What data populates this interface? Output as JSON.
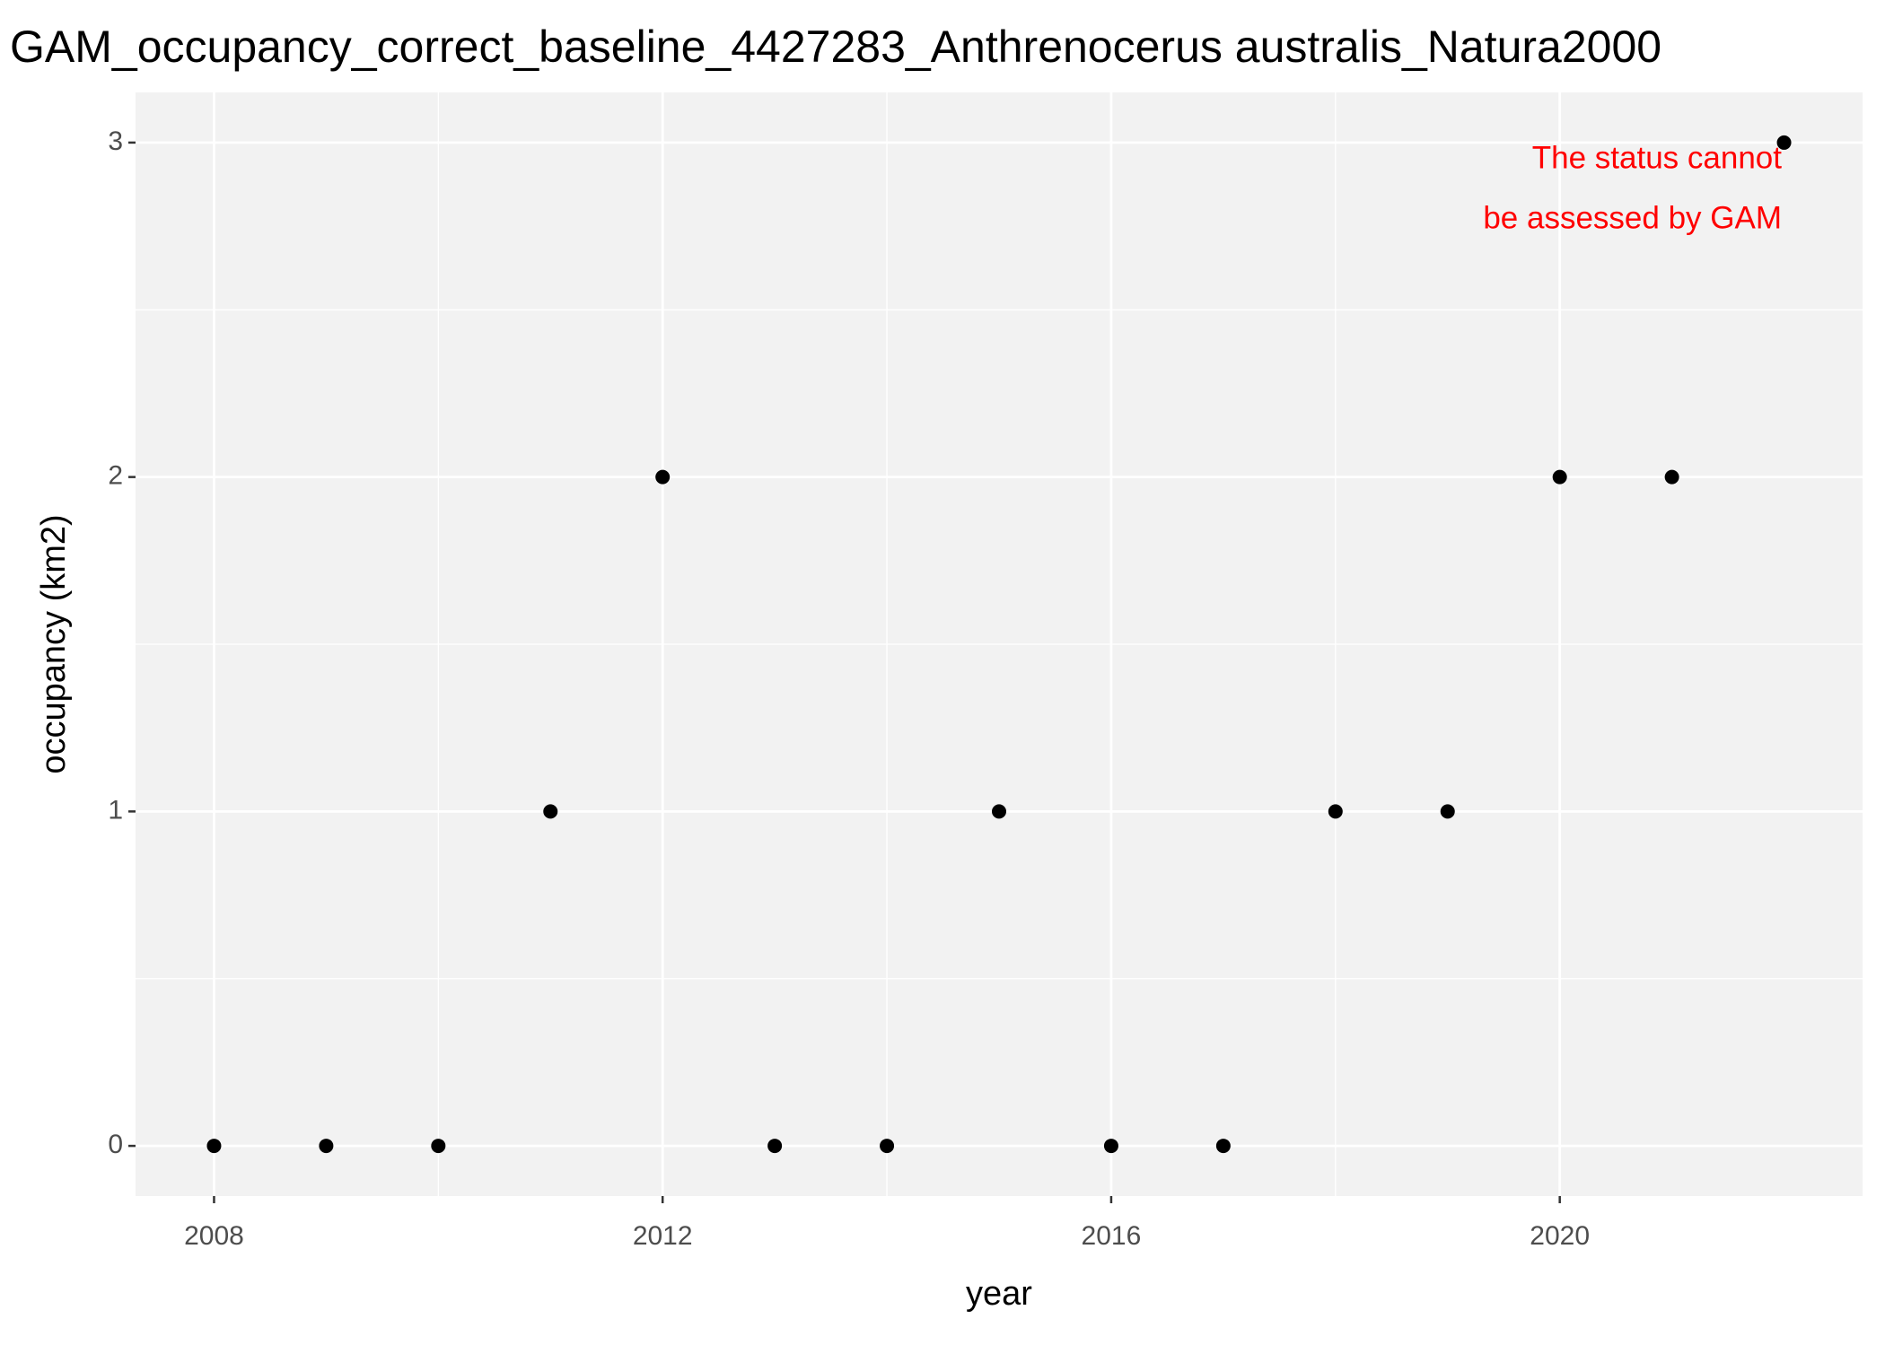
{
  "chart_data": {
    "type": "scatter",
    "title": "GAM_occupancy_correct_baseline_4427283_Anthrenocerus australis_Natura2000",
    "xlabel": "year",
    "ylabel": "occupancy (km2)",
    "annotation": [
      "The status cannot",
      "be assessed by GAM"
    ],
    "annotation_color": "#ff0000",
    "x": [
      2008,
      2009,
      2010,
      2011,
      2012,
      2013,
      2014,
      2015,
      2016,
      2017,
      2018,
      2019,
      2020,
      2021,
      2022
    ],
    "values": [
      0,
      0,
      0,
      1,
      2,
      0,
      0,
      1,
      0,
      0,
      1,
      1,
      2,
      2,
      3
    ],
    "color": "#000000",
    "xlim": [
      2007.3,
      2022.7
    ],
    "xticks": [
      2008,
      2012,
      2016,
      2020
    ],
    "ylim": [
      -0.15,
      3.15
    ],
    "yticks": [
      0,
      1,
      2,
      3
    ],
    "grid": true
  }
}
